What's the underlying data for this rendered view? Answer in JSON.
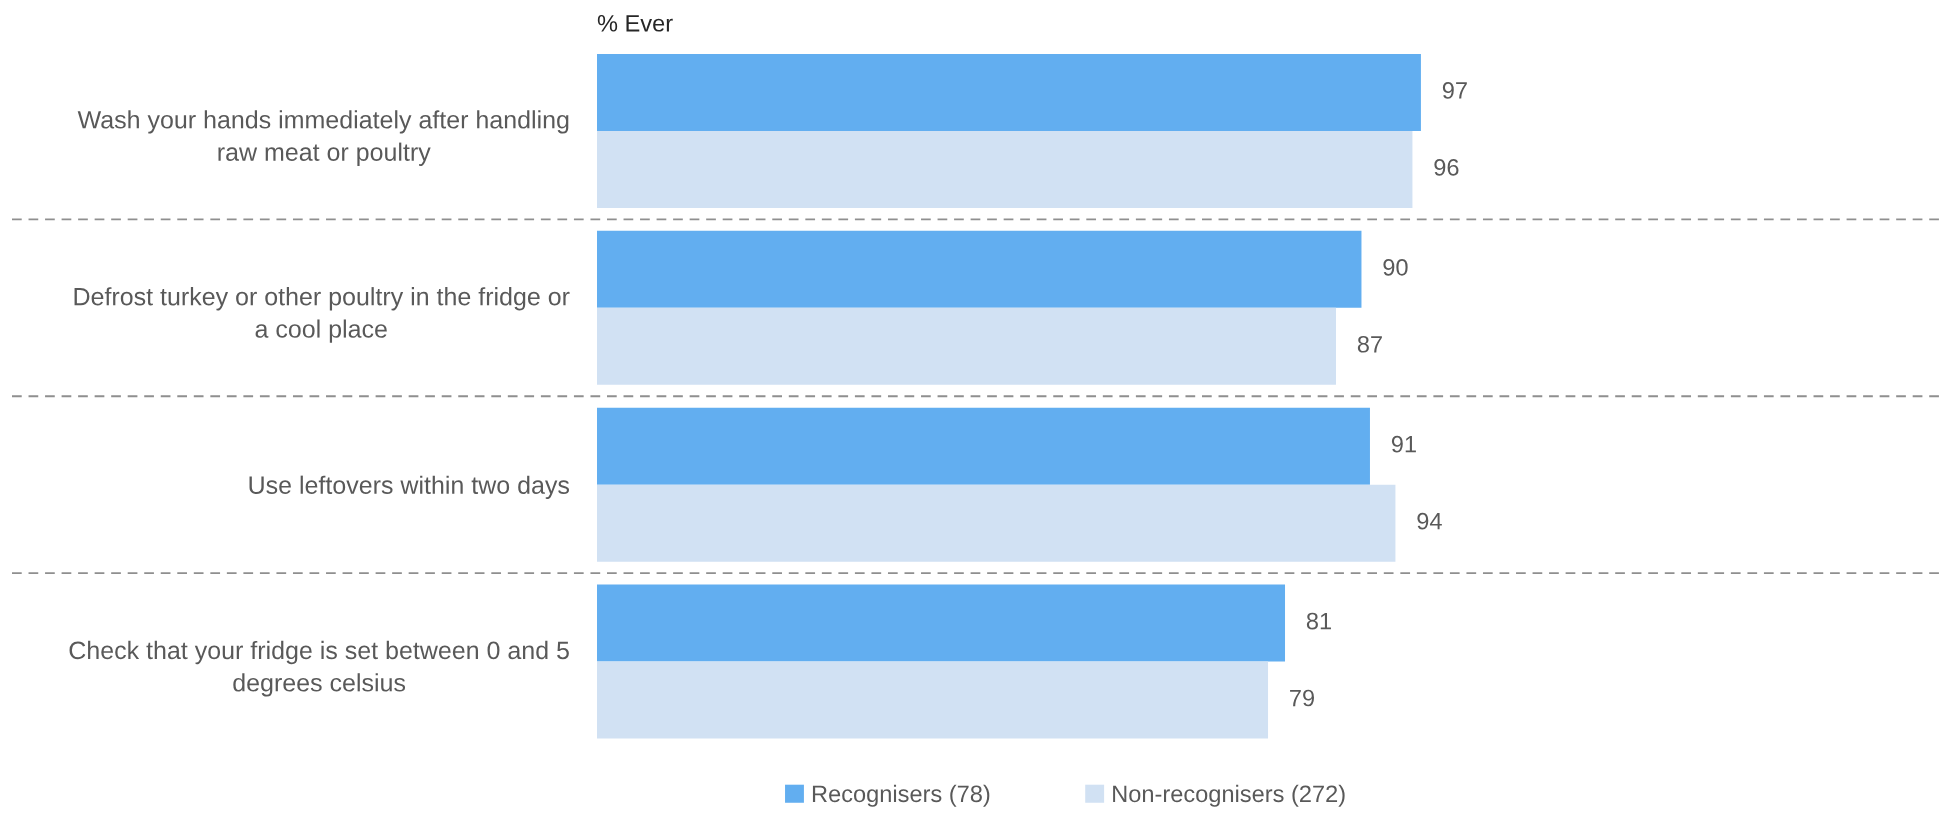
{
  "chart_data": {
    "type": "bar",
    "orientation": "horizontal",
    "title": "% Ever",
    "categories": [
      "Wash your hands immediately after handling\nraw meat or poultry",
      "Defrost turkey or other poultry in the fridge or\na cool place",
      "Use leftovers within two days",
      "Check that your fridge is set between 0 and 5\ndegrees celsius"
    ],
    "series": [
      {
        "name": "Recognisers (78)",
        "color": "#62aef0",
        "values": [
          97,
          90,
          91,
          81
        ]
      },
      {
        "name": "Non-recognisers (272)",
        "color": "#d1e1f3",
        "values": [
          96,
          87,
          94,
          79
        ]
      }
    ],
    "data_labels": true,
    "legend": "bottom",
    "grid": "y",
    "tick_labels": "y"
  }
}
